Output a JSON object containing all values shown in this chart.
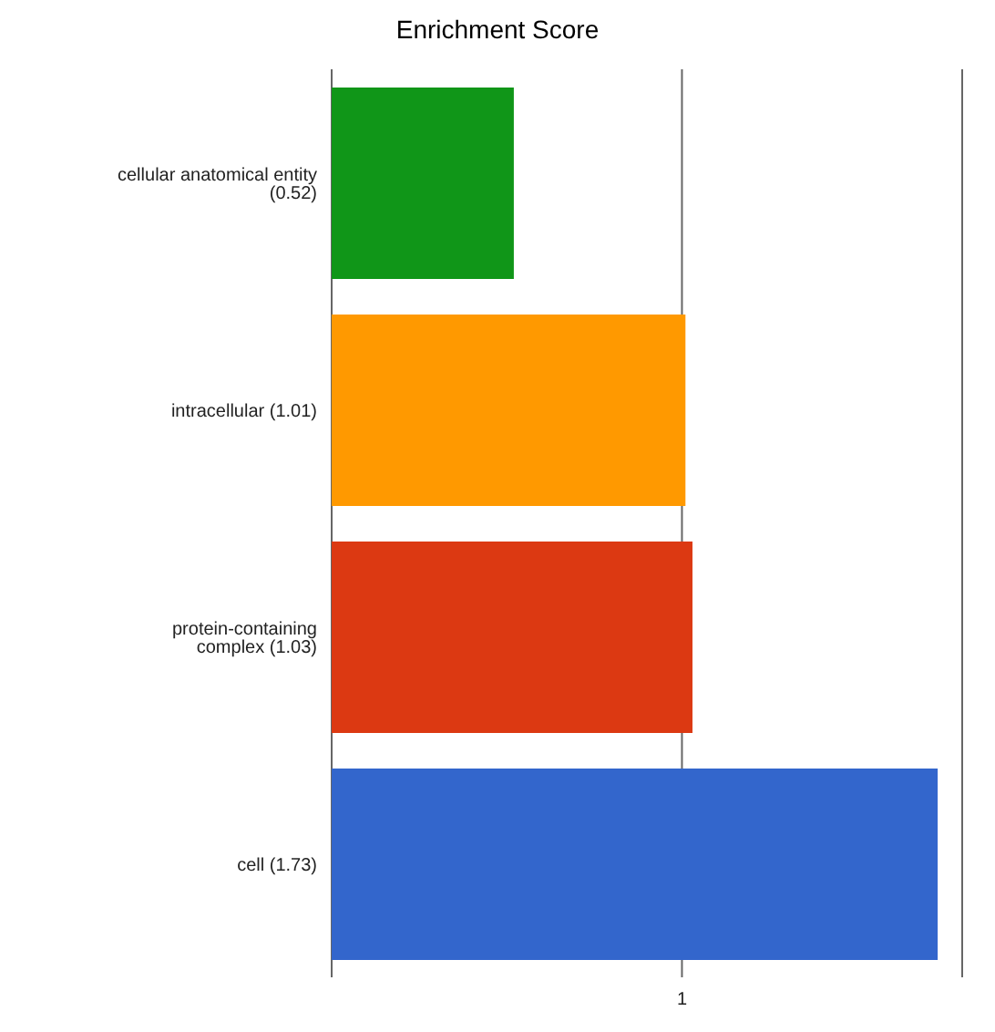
{
  "chart_data": {
    "type": "bar",
    "orientation": "horizontal",
    "title": "Enrichment Score",
    "categories": [
      "cellular anatomical entity (0.52)",
      "intracellular (1.01)",
      "protein-containing complex (1.03)",
      "cell (1.73)"
    ],
    "values": [
      0.52,
      1.01,
      1.03,
      1.73
    ],
    "colors": [
      "#109618",
      "#ff9900",
      "#dc3912",
      "#3366cc"
    ],
    "xlim": [
      0,
      1.8
    ],
    "xticks": [
      1
    ],
    "grid": "x"
  }
}
